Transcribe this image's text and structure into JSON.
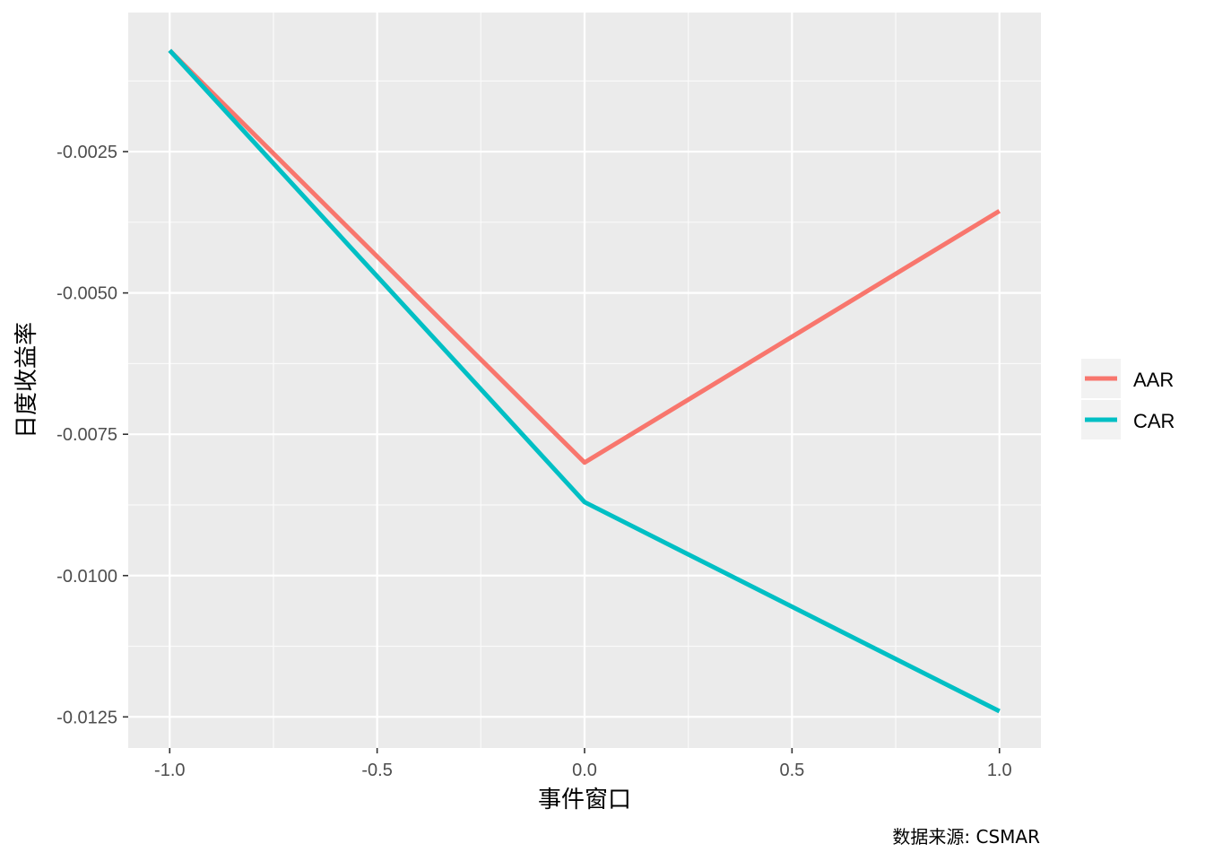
{
  "chart_data": {
    "type": "line",
    "title": "",
    "xlabel": "事件窗口",
    "ylabel": "日度收益率",
    "caption": "数据来源: CSMAR",
    "xlim": [
      -1.1,
      1.1
    ],
    "ylim": [
      -0.01305,
      -4e-05
    ],
    "x_ticks": [
      -1.0,
      -0.5,
      0.0,
      0.5,
      1.0
    ],
    "x_tick_labels": [
      "-1.0",
      "-0.5",
      "0.0",
      "0.5",
      "1.0"
    ],
    "y_ticks": [
      -0.0025,
      -0.005,
      -0.0075,
      -0.01,
      -0.0125
    ],
    "y_tick_labels": [
      "-0.0025",
      "-0.0050",
      "-0.0075",
      "-0.0100",
      "-0.0125"
    ],
    "grid": true,
    "legend_position": "right",
    "x": [
      -1,
      0,
      1
    ],
    "series": [
      {
        "name": "AAR",
        "color": "#F8766D",
        "values": [
          -0.00071,
          -0.008,
          -0.00355
        ]
      },
      {
        "name": "CAR",
        "color": "#00BFC4",
        "values": [
          -0.00071,
          -0.0087,
          -0.0124
        ]
      }
    ]
  }
}
